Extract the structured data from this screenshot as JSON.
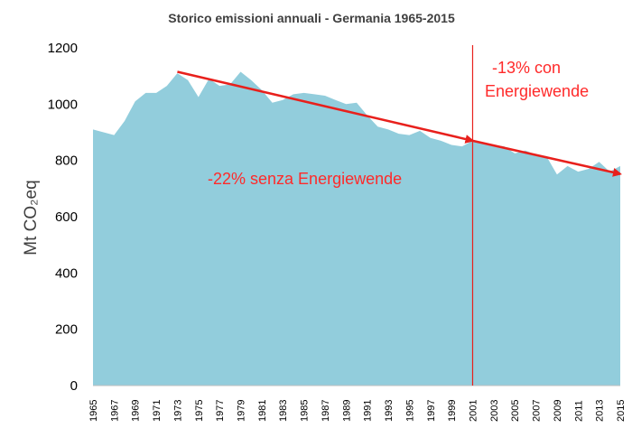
{
  "chart_data": {
    "type": "area",
    "title": "Storico emissioni annuali -  Germania 1965-2015",
    "ylabel": "Mt CO₂eq",
    "xlabel": "",
    "ylim": [
      0,
      1200
    ],
    "yticks": [
      0,
      200,
      400,
      600,
      800,
      1000,
      1200
    ],
    "xlim": [
      1965,
      2015
    ],
    "xtick_labels": [
      "1965",
      "1967",
      "1969",
      "1971",
      "1973",
      "1975",
      "1977",
      "1979",
      "1981",
      "1983",
      "1985",
      "1987",
      "1989",
      "1991",
      "1993",
      "1995",
      "1997",
      "1999",
      "2001",
      "2003",
      "2005",
      "2007",
      "2009",
      "2011",
      "2013",
      "2015"
    ],
    "grid": false,
    "area_color": "#92cddc",
    "series": [
      {
        "x": [
          1965,
          1966,
          1967,
          1968,
          1969,
          1970,
          1971,
          1972,
          1973,
          1974,
          1975,
          1976,
          1977,
          1978,
          1979,
          1980,
          1981,
          1982,
          1983,
          1984,
          1985,
          1986,
          1987,
          1988,
          1989,
          1990,
          1991,
          1992,
          1993,
          1994,
          1995,
          1996,
          1997,
          1998,
          1999,
          2000,
          2001,
          2002,
          2003,
          2004,
          2005,
          2006,
          2007,
          2008,
          2009,
          2010,
          2011,
          2012,
          2013,
          2014,
          2015
        ],
        "values": [
          910,
          900,
          890,
          940,
          1010,
          1040,
          1040,
          1065,
          1110,
          1085,
          1025,
          1090,
          1065,
          1070,
          1115,
          1085,
          1050,
          1005,
          1015,
          1035,
          1040,
          1035,
          1030,
          1015,
          1000,
          1005,
          960,
          920,
          910,
          895,
          890,
          905,
          880,
          870,
          855,
          850,
          870,
          860,
          855,
          850,
          825,
          835,
          820,
          815,
          750,
          780,
          760,
          770,
          795,
          760,
          780
        ]
      }
    ],
    "annotations": [
      {
        "text": "-22% senza Energiewende",
        "color": "#ff2a2a"
      },
      {
        "text": "-13% con",
        "color": "#ff2a2a"
      },
      {
        "text": "Energiewende",
        "color": "#ff2a2a"
      }
    ],
    "trend_arrow": {
      "x": [
        1973,
        2001,
        2015
      ],
      "y": [
        1115,
        870,
        752
      ],
      "color": "#e8201c"
    },
    "reference_line": {
      "x": 2001,
      "color": "#e8201c"
    }
  }
}
